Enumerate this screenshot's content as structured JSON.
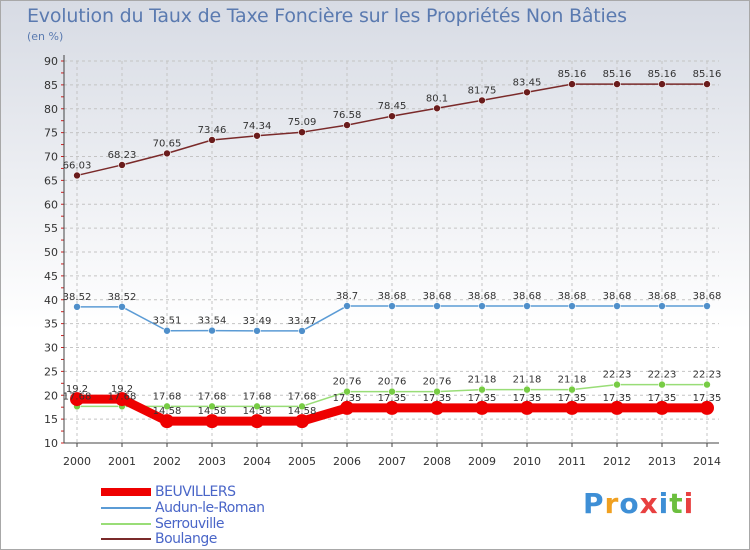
{
  "title": "Evolution du Taux de Taxe Foncière sur les Propriétés Non Bâties",
  "unit": "(en %)",
  "brand": "Proxiti",
  "colors": {
    "grid": "#c4c4c4",
    "axis": "#444444",
    "tick_mark": "#cc2222"
  },
  "chart_data": {
    "type": "line",
    "categories": [
      "2000",
      "2001",
      "2002",
      "2003",
      "2004",
      "2005",
      "2006",
      "2007",
      "2008",
      "2009",
      "2010",
      "2011",
      "2012",
      "2013",
      "2014"
    ],
    "ylim": [
      10,
      90
    ],
    "yticks": [
      10,
      15,
      20,
      25,
      30,
      35,
      40,
      45,
      50,
      55,
      60,
      65,
      70,
      75,
      80,
      85,
      90
    ],
    "grid": true,
    "legend_position": "bottom-left",
    "series": [
      {
        "name": "BEUVILLERS",
        "color": "#ee0000",
        "marker": "#ee0000",
        "values": [
          19.2,
          19.2,
          14.58,
          14.58,
          14.58,
          14.58,
          17.35,
          17.35,
          17.35,
          17.35,
          17.35,
          17.35,
          17.35,
          17.35,
          17.35
        ],
        "labels": [
          "19.2",
          "19.2",
          "14.58",
          "14.58",
          "14.58",
          "14.58",
          "17.35",
          "17.35",
          "17.35",
          "17.35",
          "17.35",
          "17.35",
          "17.35",
          "17.35",
          "17.35"
        ]
      },
      {
        "name": "Audun-le-Roman",
        "color": "#5b9bd5",
        "marker": "#4f8fca",
        "values": [
          38.52,
          38.52,
          33.51,
          33.54,
          33.49,
          33.47,
          38.7,
          38.68,
          38.68,
          38.68,
          38.68,
          38.68,
          38.68,
          38.68,
          38.68
        ],
        "labels": [
          "38.52",
          "38.52",
          "33.51",
          "33.54",
          "33.49",
          "33.47",
          "38.7",
          "38.68",
          "38.68",
          "38.68",
          "38.68",
          "38.68",
          "38.68",
          "38.68",
          "38.68"
        ]
      },
      {
        "name": "Serrouville",
        "color": "#99dd77",
        "marker": "#77cc44",
        "values": [
          17.68,
          17.68,
          17.68,
          17.68,
          17.68,
          17.68,
          20.76,
          20.76,
          20.76,
          21.18,
          21.18,
          21.18,
          22.23,
          22.23,
          22.23
        ],
        "labels": [
          "17.68",
          "17.68",
          "17.68",
          "17.68",
          "17.68",
          "17.68",
          "20.76",
          "20.76",
          "20.76",
          "21.18",
          "21.18",
          "21.18",
          "22.23",
          "22.23",
          "22.23"
        ]
      },
      {
        "name": "Boulange",
        "color": "#7a2a2a",
        "marker": "#6a1c1c",
        "values": [
          66.03,
          68.23,
          70.65,
          73.46,
          74.34,
          75.09,
          76.58,
          78.45,
          80.1,
          81.75,
          83.45,
          85.16,
          85.16,
          85.16,
          85.16
        ],
        "labels": [
          "66.03",
          "68.23",
          "70.65",
          "73.46",
          "74.34",
          "75.09",
          "76.58",
          "78.45",
          "80.1",
          "81.75",
          "83.45",
          "85.16",
          "85.16",
          "85.16",
          "85.16"
        ]
      }
    ]
  }
}
